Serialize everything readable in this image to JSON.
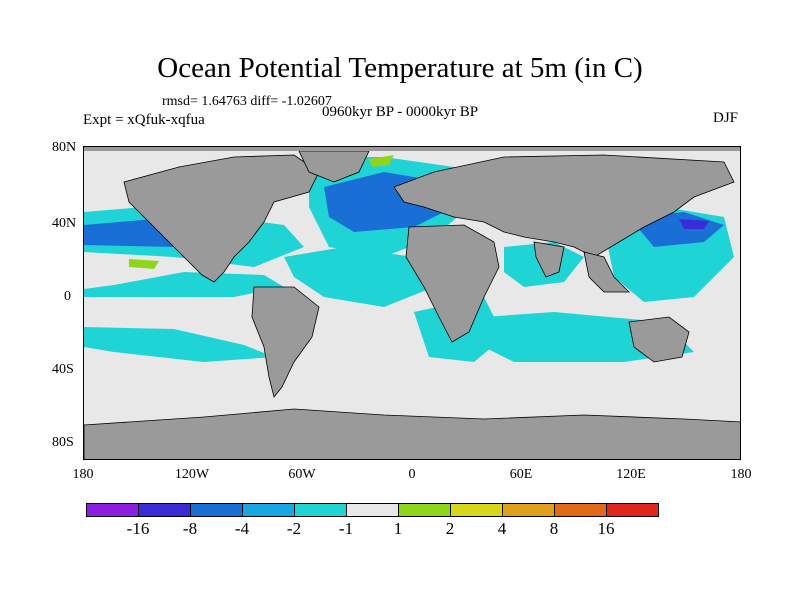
{
  "title": "Ocean Potential Temperature at 5m (in C)",
  "stats": "rmsd= 1.64763 diff= -1.02607",
  "experiment": "Expt = xQfuk-xqfua",
  "period": "0960kyr BP - 0000kyr BP",
  "season": "DJF",
  "lat_labels": [
    "80N",
    "40N",
    "0",
    "40S",
    "80S"
  ],
  "lon_labels": [
    "180",
    "120W",
    "60W",
    "0",
    "60E",
    "120E",
    "180"
  ],
  "colorbar": {
    "colors": [
      "#8c1fe0",
      "#3a2bd8",
      "#1a6fd6",
      "#1aa6e0",
      "#1fd4d4",
      "#e8e8e8",
      "#8fd61a",
      "#d6d61a",
      "#e0a01a",
      "#e06a1a",
      "#e0261a"
    ],
    "labels": [
      "-16",
      "-8",
      "-4",
      "-2",
      "-1",
      "1",
      "2",
      "4",
      "8",
      "16"
    ]
  },
  "colors": {
    "land": "#9a9a9a",
    "neutral": "#e8e8e8"
  }
}
